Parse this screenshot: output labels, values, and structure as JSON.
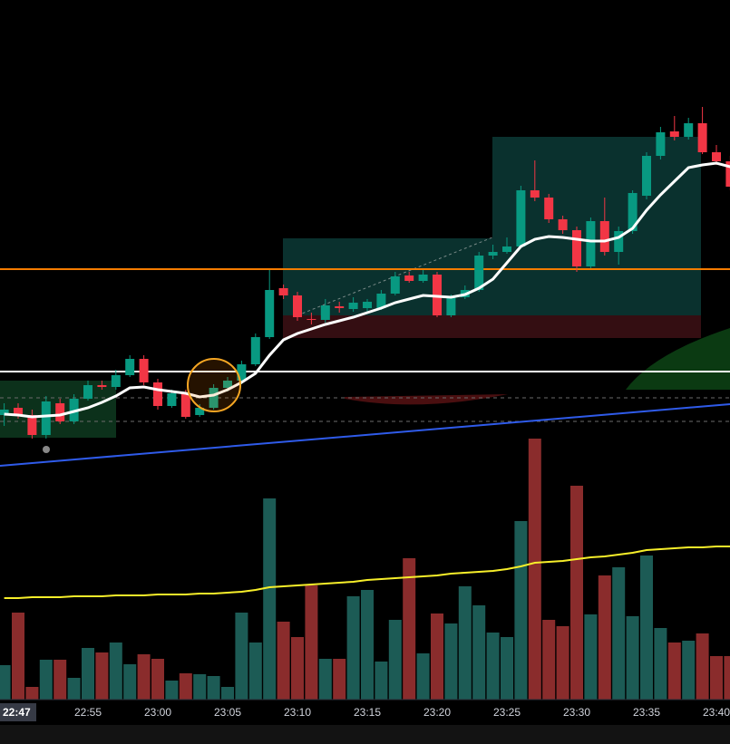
{
  "chart_data": {
    "type": "candlestick",
    "categories": [
      null,
      null,
      null,
      null,
      null,
      null,
      "22:55",
      null,
      null,
      null,
      null,
      "23:00",
      null,
      null,
      null,
      null,
      "23:05",
      null,
      null,
      null,
      null,
      "23:10",
      null,
      null,
      null,
      null,
      "23:15",
      null,
      null,
      null,
      null,
      "23:20",
      null,
      null,
      null,
      null,
      "23:25",
      null,
      null,
      null,
      null,
      "23:30",
      null,
      null,
      null,
      null,
      "23:35",
      null,
      null,
      null,
      null,
      "23:40",
      null
    ],
    "crosshair_label": "22:47",
    "open": [
      42,
      50,
      42,
      20,
      55,
      35,
      60,
      75,
      73,
      86,
      104,
      78,
      52,
      66,
      42,
      50,
      72,
      80,
      98,
      128,
      182,
      174,
      148,
      147,
      162,
      159,
      160,
      160,
      176,
      196,
      190,
      197,
      152,
      172,
      180,
      218,
      222,
      228,
      290,
      282,
      258,
      246,
      206,
      256,
      222,
      245,
      284,
      328,
      355,
      349,
      364,
      332,
      322
    ],
    "high": [
      55,
      55,
      48,
      63,
      60,
      65,
      80,
      80,
      92,
      108,
      108,
      82,
      70,
      70,
      54,
      76,
      84,
      102,
      132,
      202,
      186,
      178,
      155,
      170,
      167,
      172,
      170,
      180,
      200,
      200,
      202,
      200,
      175,
      185,
      222,
      230,
      238,
      295,
      323,
      286,
      262,
      250,
      260,
      282,
      250,
      290,
      332,
      360,
      372,
      370,
      382,
      340,
      328
    ],
    "low": [
      30,
      38,
      16,
      16,
      32,
      32,
      58,
      70,
      70,
      84,
      75,
      48,
      50,
      38,
      40,
      48,
      68,
      76,
      96,
      126,
      170,
      146,
      142,
      144,
      155,
      156,
      154,
      158,
      174,
      188,
      188,
      150,
      150,
      170,
      178,
      214,
      220,
      226,
      278,
      254,
      242,
      200,
      204,
      218,
      208,
      242,
      280,
      324,
      345,
      346,
      330,
      318,
      290
    ],
    "close": [
      48,
      42,
      20,
      57,
      35,
      60,
      75,
      73,
      86,
      104,
      78,
      52,
      66,
      40,
      50,
      72,
      80,
      98,
      128,
      180,
      174,
      150,
      147,
      163,
      160,
      166,
      167,
      176,
      195,
      190,
      197,
      152,
      172,
      180,
      218,
      222,
      228,
      290,
      282,
      258,
      246,
      206,
      256,
      222,
      245,
      287,
      328,
      354,
      349,
      364,
      332,
      322,
      294
    ],
    "up_color": "#089981",
    "down_color": "#f23645",
    "ylim": [
      0,
      500
    ],
    "ema": {
      "color": "#ffffff",
      "values": [
        43,
        42,
        40,
        41,
        42,
        46,
        50,
        56,
        63,
        72,
        73,
        70,
        68,
        66,
        62,
        64,
        70,
        78,
        88,
        108,
        125,
        132,
        137,
        142,
        146,
        150,
        155,
        160,
        166,
        170,
        174,
        173,
        172,
        175,
        182,
        192,
        210,
        228,
        236,
        239,
        238,
        236,
        234,
        234,
        238,
        248,
        268,
        285,
        300,
        315,
        318,
        320,
        316
      ]
    },
    "hlines": [
      {
        "value": 203,
        "color": "#f57c00",
        "dashed": false
      },
      {
        "value": 90,
        "color": "#ffffff",
        "dashed": false
      },
      {
        "value": 61,
        "color": "#6b6b6b",
        "dashed": true
      },
      {
        "value": 35,
        "color": "#6b6b6b",
        "dashed": true
      }
    ],
    "trend_line": {
      "color": "#2f5bea",
      "values": [
        -14,
        54
      ]
    },
    "volume": {
      "values": [
        38,
        96,
        14,
        44,
        44,
        24,
        57,
        52,
        63,
        39,
        50,
        45,
        21,
        29,
        28,
        26,
        14,
        96,
        63,
        222,
        86,
        69,
        126,
        45,
        45,
        114,
        121,
        42,
        88,
        156,
        51,
        95,
        84,
        125,
        104,
        74,
        69,
        197,
        288,
        88,
        81,
        236,
        94,
        137,
        146,
        92,
        159,
        79,
        63,
        65,
        73,
        48,
        48
      ],
      "up_color": "#1c5b55",
      "down_color": "#8a2c2c",
      "ylim": [
        0,
        300
      ],
      "ma": {
        "color": "#f7ef2a",
        "values": [
          112,
          112,
          113,
          113,
          113,
          114,
          114,
          114,
          115,
          115,
          115,
          116,
          116,
          116,
          117,
          117,
          118,
          119,
          121,
          124,
          125,
          126,
          127,
          128,
          129,
          130,
          132,
          133,
          134,
          135,
          136,
          137,
          139,
          140,
          141,
          142,
          144,
          147,
          151,
          152,
          153,
          155,
          157,
          158,
          160,
          162,
          165,
          166,
          167,
          168,
          168,
          169,
          169
        ]
      }
    }
  }
}
